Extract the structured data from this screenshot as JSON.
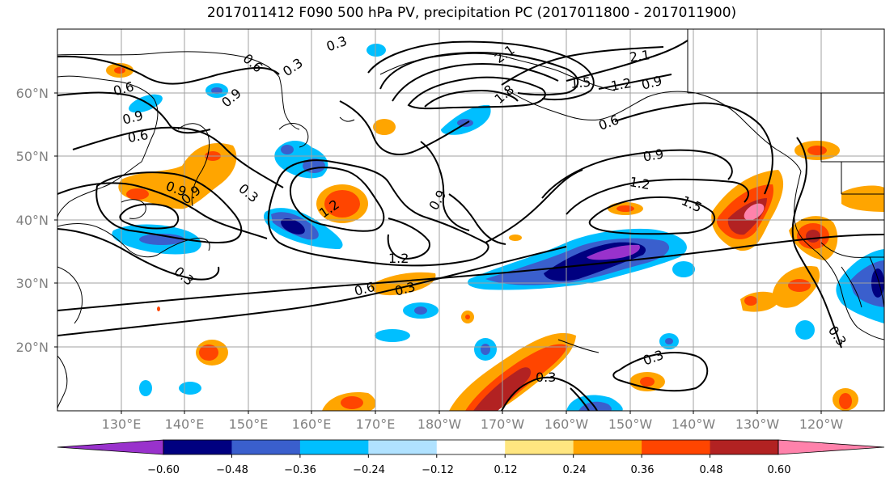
{
  "title": "2017011412 F090 500 hPa PV, precipitation PC (2017011800 - 2017011900)",
  "lat_labels": [
    "60°N",
    "50°N",
    "40°N",
    "30°N",
    "20°N"
  ],
  "lon_labels": [
    "130°E",
    "140°E",
    "150°E",
    "160°E",
    "170°E",
    "180°W",
    "170°W",
    "160°W",
    "150°W",
    "140°W",
    "130°W",
    "120°W"
  ],
  "colorbar": {
    "ticks": [
      "−0.60",
      "−0.48",
      "−0.36",
      "−0.24",
      "−0.12",
      "0.12",
      "0.24",
      "0.36",
      "0.48",
      "0.60"
    ],
    "colors": [
      "#9932cc",
      "#000080",
      "#3a5fcd",
      "#00bfff",
      "#b0e2ff",
      "#ffffff",
      "#ffe680",
      "#ffa500",
      "#ff4500",
      "#b22222",
      "#ff82ab"
    ]
  },
  "contour_labels": [
    "0.6",
    "0.3",
    "0.6",
    "0.9",
    "0.9",
    "0.6",
    "0.9",
    "0.3",
    "2.1",
    "1.8",
    "2.1",
    "1.5",
    "1.2",
    "0.9",
    "0.6",
    "0.9",
    "1.2",
    "1.5",
    "1.2",
    "0.9",
    "1.2",
    "0.6",
    "0.3",
    "0.3",
    "0.3",
    "0.3",
    "0.3",
    "0.9",
    "0.3"
  ]
}
